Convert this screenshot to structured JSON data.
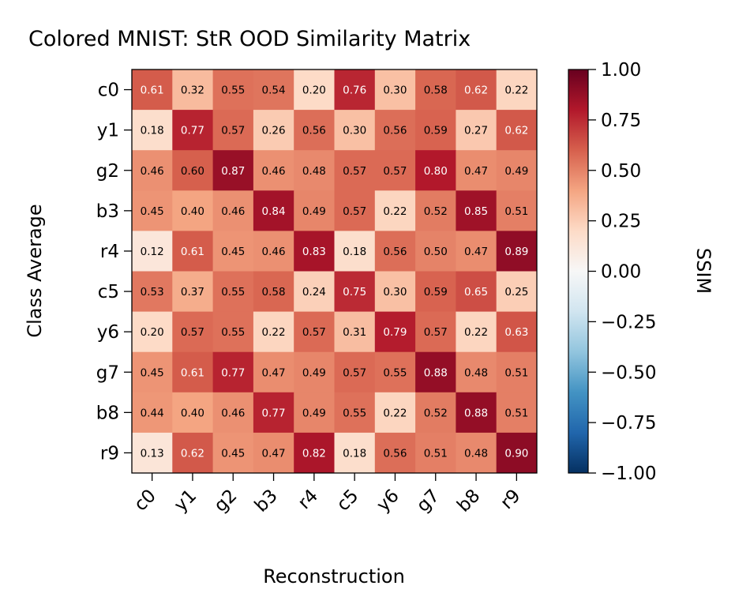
{
  "chart_data": {
    "type": "heatmap",
    "title": "Colored MNIST: StR OOD Similarity Matrix",
    "xlabel": "Reconstruction",
    "ylabel": "Class Average",
    "x_categories": [
      "c0",
      "y1",
      "g2",
      "b3",
      "r4",
      "c5",
      "y6",
      "g7",
      "b8",
      "r9"
    ],
    "y_categories": [
      "c0",
      "y1",
      "g2",
      "b3",
      "r4",
      "c5",
      "y6",
      "g7",
      "b8",
      "r9"
    ],
    "values": [
      [
        0.61,
        0.32,
        0.55,
        0.54,
        0.2,
        0.76,
        0.3,
        0.58,
        0.62,
        0.22
      ],
      [
        0.18,
        0.77,
        0.57,
        0.26,
        0.56,
        0.3,
        0.56,
        0.59,
        0.27,
        0.62
      ],
      [
        0.46,
        0.6,
        0.87,
        0.46,
        0.48,
        0.57,
        0.57,
        0.8,
        0.47,
        0.49
      ],
      [
        0.45,
        0.4,
        0.46,
        0.84,
        0.49,
        0.57,
        0.22,
        0.52,
        0.85,
        0.51
      ],
      [
        0.12,
        0.61,
        0.45,
        0.46,
        0.83,
        0.18,
        0.56,
        0.5,
        0.47,
        0.89
      ],
      [
        0.53,
        0.37,
        0.55,
        0.58,
        0.24,
        0.75,
        0.3,
        0.59,
        0.65,
        0.25
      ],
      [
        0.2,
        0.57,
        0.55,
        0.22,
        0.57,
        0.31,
        0.79,
        0.57,
        0.22,
        0.63
      ],
      [
        0.45,
        0.61,
        0.77,
        0.47,
        0.49,
        0.57,
        0.55,
        0.88,
        0.48,
        0.51
      ],
      [
        0.44,
        0.4,
        0.46,
        0.77,
        0.49,
        0.55,
        0.22,
        0.52,
        0.88,
        0.51
      ],
      [
        0.13,
        0.62,
        0.45,
        0.47,
        0.82,
        0.18,
        0.56,
        0.51,
        0.48,
        0.9
      ]
    ],
    "colormap": "RdBu_r",
    "vmin": -1.0,
    "vmax": 1.0,
    "colorbar": {
      "label": "SSIM",
      "ticks": [
        "1.00",
        "0.75",
        "0.50",
        "0.25",
        "0.00",
        "−0.25",
        "−0.50",
        "−0.75",
        "−1.00"
      ],
      "tick_values": [
        1.0,
        0.75,
        0.5,
        0.25,
        0.0,
        -0.25,
        -0.5,
        -0.75,
        -1.0
      ]
    },
    "annotations": true,
    "legend": "none",
    "grid": false
  }
}
